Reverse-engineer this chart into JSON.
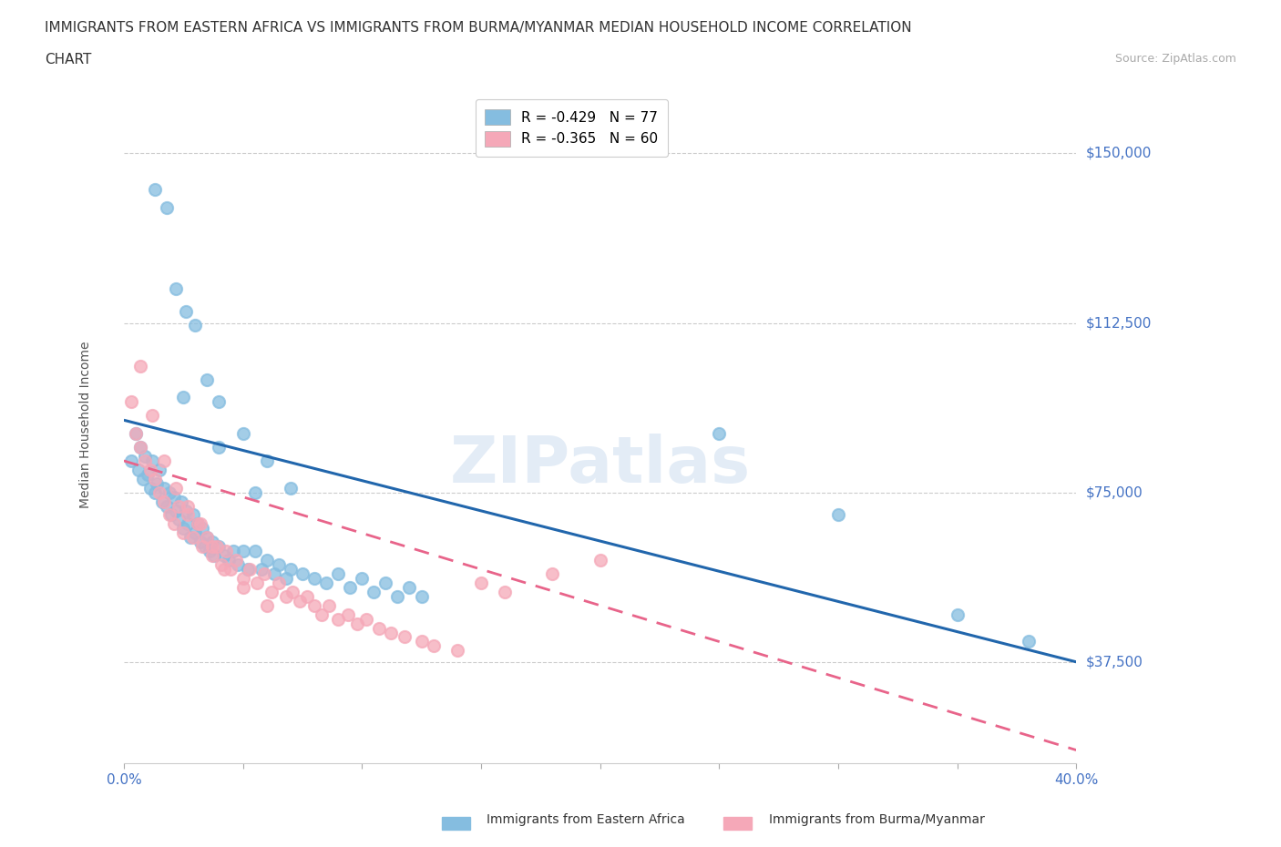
{
  "title_line1": "IMMIGRANTS FROM EASTERN AFRICA VS IMMIGRANTS FROM BURMA/MYANMAR MEDIAN HOUSEHOLD INCOME CORRELATION",
  "title_line2": "CHART",
  "source_text": "Source: ZipAtlas.com",
  "ylabel": "Median Household Income",
  "yticks": [
    37500,
    75000,
    112500,
    150000
  ],
  "ytick_labels": [
    "$37,500",
    "$75,000",
    "$112,500",
    "$150,000"
  ],
  "xmin": 0.0,
  "xmax": 0.4,
  "ymin": 15000,
  "ymax": 165000,
  "blue_color": "#85bde0",
  "pink_color": "#f5a8b8",
  "blue_line_color": "#2166ac",
  "pink_line_color": "#e8648a",
  "legend_blue_label": "R = -0.429   N = 77",
  "legend_pink_label": "R = -0.365   N = 60",
  "legend_blue_series": "Immigrants from Eastern Africa",
  "legend_pink_series": "Immigrants from Burma/Myanmar",
  "blue_line_x0": 0.0,
  "blue_line_x1": 0.4,
  "blue_line_y0": 91000,
  "blue_line_y1": 37500,
  "pink_line_x0": 0.0,
  "pink_line_x1": 0.4,
  "pink_line_y0": 82000,
  "pink_line_y1": 18000,
  "blue_scatter_x": [
    0.003,
    0.005,
    0.006,
    0.007,
    0.008,
    0.009,
    0.01,
    0.011,
    0.012,
    0.013,
    0.014,
    0.015,
    0.016,
    0.017,
    0.018,
    0.019,
    0.02,
    0.021,
    0.022,
    0.023,
    0.024,
    0.025,
    0.026,
    0.027,
    0.028,
    0.029,
    0.03,
    0.031,
    0.032,
    0.033,
    0.034,
    0.035,
    0.036,
    0.037,
    0.038,
    0.04,
    0.042,
    0.044,
    0.046,
    0.048,
    0.05,
    0.052,
    0.055,
    0.058,
    0.06,
    0.063,
    0.065,
    0.068,
    0.07,
    0.075,
    0.08,
    0.085,
    0.09,
    0.095,
    0.1,
    0.105,
    0.11,
    0.115,
    0.12,
    0.125,
    0.013,
    0.018,
    0.022,
    0.026,
    0.03,
    0.035,
    0.04,
    0.05,
    0.06,
    0.07,
    0.025,
    0.04,
    0.055,
    0.25,
    0.3,
    0.35,
    0.38
  ],
  "blue_scatter_y": [
    82000,
    88000,
    80000,
    85000,
    78000,
    83000,
    79000,
    76000,
    82000,
    75000,
    77000,
    80000,
    73000,
    76000,
    72000,
    75000,
    70000,
    74000,
    71000,
    69000,
    73000,
    67000,
    71000,
    68000,
    65000,
    70000,
    66000,
    68000,
    64000,
    67000,
    63000,
    65000,
    62000,
    64000,
    61000,
    63000,
    61000,
    60000,
    62000,
    59000,
    62000,
    58000,
    62000,
    58000,
    60000,
    57000,
    59000,
    56000,
    58000,
    57000,
    56000,
    55000,
    57000,
    54000,
    56000,
    53000,
    55000,
    52000,
    54000,
    52000,
    142000,
    138000,
    120000,
    115000,
    112000,
    100000,
    95000,
    88000,
    82000,
    76000,
    96000,
    85000,
    75000,
    88000,
    70000,
    48000,
    42000
  ],
  "pink_scatter_x": [
    0.003,
    0.005,
    0.007,
    0.009,
    0.011,
    0.013,
    0.015,
    0.017,
    0.019,
    0.021,
    0.023,
    0.025,
    0.027,
    0.029,
    0.031,
    0.033,
    0.035,
    0.037,
    0.039,
    0.041,
    0.043,
    0.045,
    0.047,
    0.05,
    0.053,
    0.056,
    0.059,
    0.062,
    0.065,
    0.068,
    0.071,
    0.074,
    0.077,
    0.08,
    0.083,
    0.086,
    0.09,
    0.094,
    0.098,
    0.102,
    0.107,
    0.112,
    0.118,
    0.125,
    0.13,
    0.14,
    0.15,
    0.16,
    0.18,
    0.2,
    0.007,
    0.012,
    0.017,
    0.022,
    0.027,
    0.032,
    0.037,
    0.042,
    0.05,
    0.06
  ],
  "pink_scatter_y": [
    95000,
    88000,
    85000,
    82000,
    80000,
    78000,
    75000,
    73000,
    70000,
    68000,
    72000,
    66000,
    70000,
    65000,
    68000,
    63000,
    65000,
    61000,
    63000,
    59000,
    62000,
    58000,
    60000,
    56000,
    58000,
    55000,
    57000,
    53000,
    55000,
    52000,
    53000,
    51000,
    52000,
    50000,
    48000,
    50000,
    47000,
    48000,
    46000,
    47000,
    45000,
    44000,
    43000,
    42000,
    41000,
    40000,
    55000,
    53000,
    57000,
    60000,
    103000,
    92000,
    82000,
    76000,
    72000,
    68000,
    63000,
    58000,
    54000,
    50000
  ]
}
